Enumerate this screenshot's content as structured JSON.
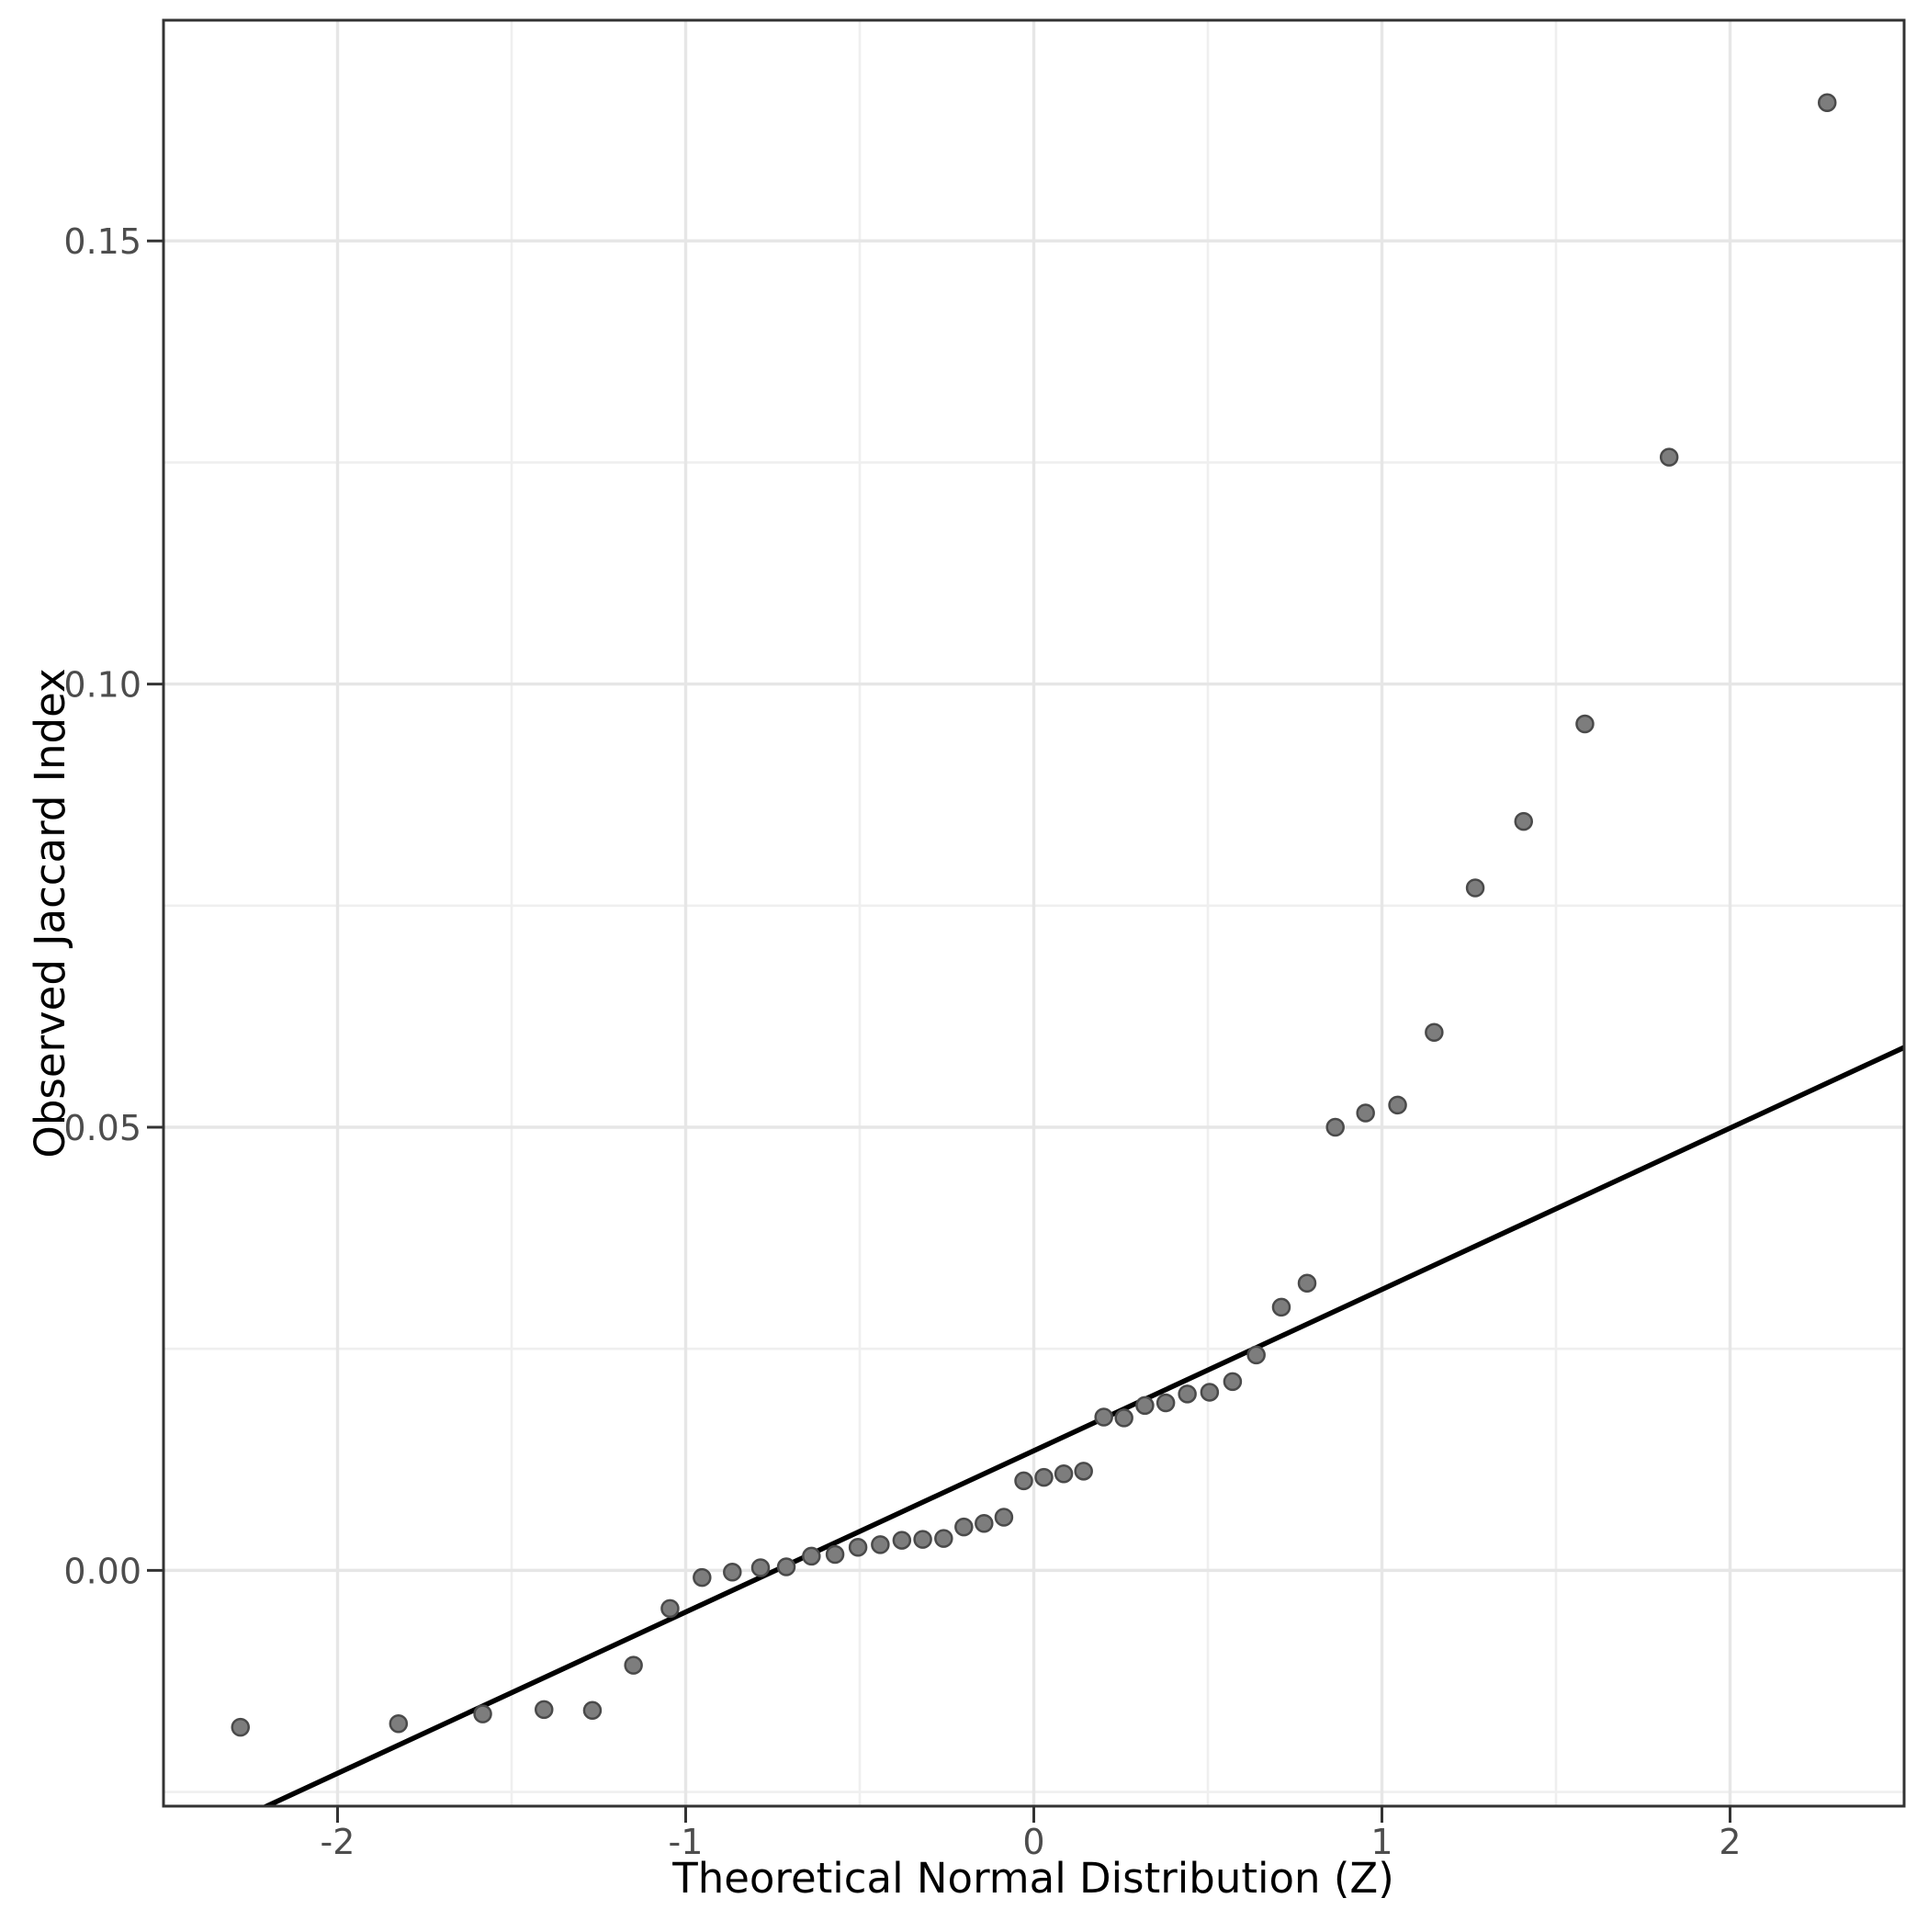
{
  "figure": {
    "background_color": "#ffffff",
    "panel_border_color": "#333333",
    "grid_major_color": "#e6e6e6",
    "grid_minor_color": "#efefef",
    "tick_mark_color": "#333333",
    "tick_label_color": "#4d4d4d",
    "axis_title_color": "#000000",
    "point_fill_color": "#7d7d7d",
    "point_stroke_color": "#4a4a4a",
    "reference_line_color": "#000000"
  },
  "chart_data": {
    "type": "scatter",
    "title": "",
    "xlabel": "Theoretical Normal Distribution (Z)",
    "ylabel": "Observed Jaccard Index",
    "xlim": [
      -2.5,
      2.5
    ],
    "ylim": [
      -0.0266,
      0.1749
    ],
    "x_ticks": [
      -2,
      -1,
      0,
      1,
      2
    ],
    "x_tick_labels": [
      "-2",
      "-1",
      "0",
      "1",
      "2"
    ],
    "y_ticks": [
      0.0,
      0.05,
      0.1,
      0.15
    ],
    "y_tick_labels": [
      "0.00",
      "0.05",
      "0.10",
      "0.15"
    ],
    "x_minor_ticks": [
      -1.5,
      -0.5,
      0.5,
      1.5
    ],
    "y_minor_ticks": [
      -0.025,
      0.025,
      0.075,
      0.125
    ],
    "grid": true,
    "legend": "none",
    "points": [
      [
        -2.279,
        -0.0177
      ],
      [
        -1.825,
        -0.0173
      ],
      [
        -1.583,
        -0.0162
      ],
      [
        -1.407,
        -0.0157
      ],
      [
        -1.268,
        -0.0158
      ],
      [
        -1.15,
        -0.0107
      ],
      [
        -1.045,
        -0.0043
      ],
      [
        -0.953,
        -0.0008
      ],
      [
        -0.866,
        -0.0002
      ],
      [
        -0.785,
        0.0003
      ],
      [
        -0.711,
        0.0004
      ],
      [
        -0.639,
        0.0016
      ],
      [
        -0.571,
        0.0018
      ],
      [
        -0.505,
        0.0026
      ],
      [
        -0.441,
        0.0029
      ],
      [
        -0.379,
        0.0034
      ],
      [
        -0.319,
        0.0035
      ],
      [
        -0.259,
        0.0036
      ],
      [
        -0.201,
        0.0049
      ],
      [
        -0.143,
        0.0053
      ],
      [
        -0.086,
        0.006
      ],
      [
        -0.029,
        0.0101
      ],
      [
        0.029,
        0.0105
      ],
      [
        0.086,
        0.0109
      ],
      [
        0.143,
        0.0112
      ],
      [
        0.201,
        0.0173
      ],
      [
        0.259,
        0.0172
      ],
      [
        0.319,
        0.0186
      ],
      [
        0.379,
        0.0189
      ],
      [
        0.441,
        0.0199
      ],
      [
        0.505,
        0.0201
      ],
      [
        0.571,
        0.0213
      ],
      [
        0.639,
        0.0243
      ],
      [
        0.711,
        0.0297
      ],
      [
        0.785,
        0.0324
      ],
      [
        0.866,
        0.05
      ],
      [
        0.953,
        0.0516
      ],
      [
        1.045,
        0.0525
      ],
      [
        1.15,
        0.0607
      ],
      [
        1.268,
        0.077
      ],
      [
        1.407,
        0.0845
      ],
      [
        1.583,
        0.0955
      ],
      [
        1.825,
        0.1256
      ],
      [
        2.279,
        0.1656
      ]
    ],
    "reference_line": {
      "slope": 0.0182,
      "intercept": 0.0135
    }
  }
}
